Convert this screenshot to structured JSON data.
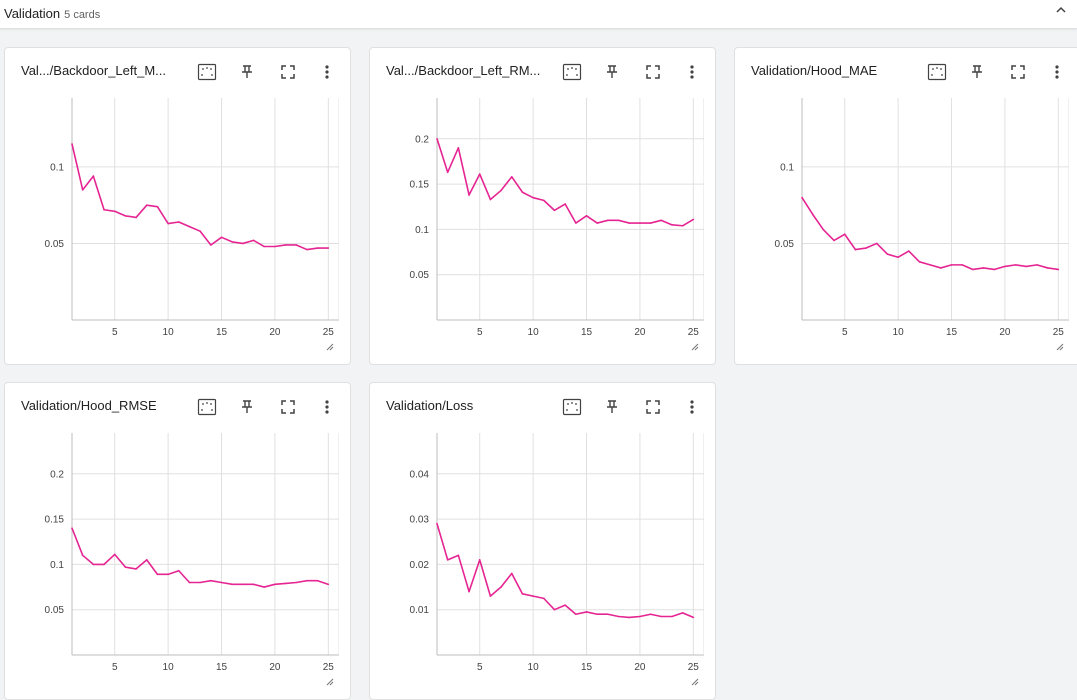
{
  "group": {
    "title": "Validation",
    "count": "5 cards"
  },
  "colors": {
    "series": "#e52592",
    "grid": "#e0e0e0",
    "axis": "#bdbdbd"
  },
  "icons": {
    "collapse": "chevron-up-icon",
    "fit": "fit-domain-icon",
    "pin": "pin-icon",
    "fullscreen": "fullscreen-icon",
    "more": "more-vert-icon",
    "resize": "resize-handle-icon"
  },
  "cards": [
    {
      "title": "Val.../Backdoor_Left_M...",
      "chart_data": {
        "type": "line",
        "title": "Val.../Backdoor_Left_M...",
        "xlim": [
          1,
          26
        ],
        "ylim": [
          0.0,
          0.145
        ],
        "xticks": [
          "5",
          "10",
          "15",
          "20",
          "25"
        ],
        "yticks": [
          "0.05",
          "0.1"
        ],
        "x": [
          1,
          2,
          3,
          4,
          5,
          6,
          7,
          8,
          9,
          10,
          11,
          12,
          13,
          14,
          15,
          16,
          17,
          18,
          19,
          20,
          21,
          22,
          23,
          24,
          25
        ],
        "series": [
          {
            "values": [
              0.115,
              0.085,
              0.094,
              0.072,
              0.071,
              0.068,
              0.067,
              0.075,
              0.074,
              0.063,
              0.064,
              0.061,
              0.058,
              0.049,
              0.054,
              0.051,
              0.05,
              0.052,
              0.048,
              0.048,
              0.049,
              0.049,
              0.046,
              0.047,
              0.047
            ]
          }
        ]
      }
    },
    {
      "title": "Val.../Backdoor_Left_RM...",
      "chart_data": {
        "type": "line",
        "title": "Val.../Backdoor_Left_RM...",
        "xlim": [
          1,
          26
        ],
        "ylim": [
          0.0,
          0.245
        ],
        "xticks": [
          "5",
          "10",
          "15",
          "20",
          "25"
        ],
        "yticks": [
          "0.05",
          "0.1",
          "0.15",
          "0.2"
        ],
        "x": [
          1,
          2,
          3,
          4,
          5,
          6,
          7,
          8,
          9,
          10,
          11,
          12,
          13,
          14,
          15,
          16,
          17,
          18,
          19,
          20,
          21,
          22,
          23,
          24,
          25
        ],
        "series": [
          {
            "values": [
              0.2,
              0.163,
              0.19,
              0.138,
              0.161,
              0.133,
              0.143,
              0.158,
              0.141,
              0.135,
              0.132,
              0.121,
              0.128,
              0.107,
              0.115,
              0.107,
              0.11,
              0.11,
              0.107,
              0.107,
              0.107,
              0.11,
              0.105,
              0.104,
              0.111
            ]
          }
        ]
      }
    },
    {
      "title": "Validation/Hood_MAE",
      "chart_data": {
        "type": "line",
        "title": "Validation/Hood_MAE",
        "xlim": [
          1,
          26
        ],
        "ylim": [
          0.0,
          0.145
        ],
        "xticks": [
          "5",
          "10",
          "15",
          "20",
          "25"
        ],
        "yticks": [
          "0.05",
          "0.1"
        ],
        "x": [
          1,
          2,
          3,
          4,
          5,
          6,
          7,
          8,
          9,
          10,
          11,
          12,
          13,
          14,
          15,
          16,
          17,
          18,
          19,
          20,
          21,
          22,
          23,
          24,
          25
        ],
        "series": [
          {
            "values": [
              0.08,
              0.069,
              0.059,
              0.052,
              0.056,
              0.046,
              0.047,
              0.05,
              0.043,
              0.041,
              0.045,
              0.038,
              0.036,
              0.034,
              0.036,
              0.036,
              0.033,
              0.034,
              0.033,
              0.035,
              0.036,
              0.035,
              0.036,
              0.034,
              0.033
            ]
          }
        ]
      }
    },
    {
      "title": "Validation/Hood_RMSE",
      "chart_data": {
        "type": "line",
        "title": "Validation/Hood_RMSE",
        "xlim": [
          1,
          26
        ],
        "ylim": [
          0.0,
          0.245
        ],
        "xticks": [
          "5",
          "10",
          "15",
          "20",
          "25"
        ],
        "yticks": [
          "0.05",
          "0.1",
          "0.15",
          "0.2"
        ],
        "x": [
          1,
          2,
          3,
          4,
          5,
          6,
          7,
          8,
          9,
          10,
          11,
          12,
          13,
          14,
          15,
          16,
          17,
          18,
          19,
          20,
          21,
          22,
          23,
          24,
          25
        ],
        "series": [
          {
            "values": [
              0.14,
              0.11,
              0.1,
              0.1,
              0.111,
              0.097,
              0.095,
              0.105,
              0.089,
              0.089,
              0.093,
              0.08,
              0.08,
              0.082,
              0.08,
              0.078,
              0.078,
              0.078,
              0.075,
              0.078,
              0.079,
              0.08,
              0.082,
              0.082,
              0.078
            ]
          }
        ]
      }
    },
    {
      "title": "Validation/Loss",
      "chart_data": {
        "type": "line",
        "title": "Validation/Loss",
        "xlim": [
          1,
          26
        ],
        "ylim": [
          0.0,
          0.049
        ],
        "xticks": [
          "5",
          "10",
          "15",
          "20",
          "25"
        ],
        "yticks": [
          "0.01",
          "0.02",
          "0.03",
          "0.04"
        ],
        "x": [
          1,
          2,
          3,
          4,
          5,
          6,
          7,
          8,
          9,
          10,
          11,
          12,
          13,
          14,
          15,
          16,
          17,
          18,
          19,
          20,
          21,
          22,
          23,
          24,
          25
        ],
        "series": [
          {
            "values": [
              0.029,
              0.021,
              0.022,
              0.014,
              0.021,
              0.013,
              0.015,
              0.018,
              0.0135,
              0.013,
              0.0125,
              0.01,
              0.011,
              0.009,
              0.0095,
              0.009,
              0.009,
              0.0085,
              0.0083,
              0.0085,
              0.009,
              0.0085,
              0.0085,
              0.0093,
              0.0083
            ]
          }
        ]
      }
    }
  ]
}
